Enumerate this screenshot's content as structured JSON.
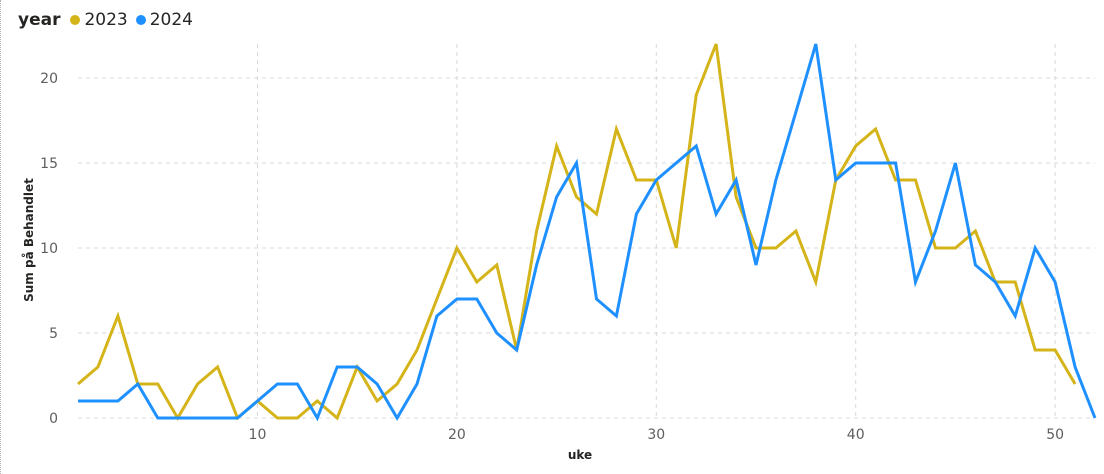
{
  "legend": {
    "title": "year",
    "items": [
      {
        "label": "2023",
        "color": "#d4b419"
      },
      {
        "label": "2024",
        "color": "#1e90ff"
      }
    ]
  },
  "chart_data": {
    "type": "line",
    "xlabel": "uke",
    "ylabel": "Sum på Behandlet",
    "xlim": [
      1,
      52
    ],
    "ylim": [
      0,
      22
    ],
    "x_ticks": [
      10,
      20,
      30,
      40,
      50
    ],
    "y_ticks": [
      0,
      5,
      10,
      15,
      20
    ],
    "grid": true,
    "legend_position": "top-left",
    "series": [
      {
        "name": "2023",
        "color": "#d4b419",
        "x": [
          1,
          2,
          3,
          4,
          5,
          6,
          7,
          8,
          9,
          10,
          11,
          12,
          13,
          14,
          15,
          16,
          17,
          18,
          19,
          20,
          21,
          22,
          23,
          24,
          25,
          26,
          27,
          28,
          29,
          30,
          31,
          32,
          33,
          34,
          35,
          36,
          37,
          38,
          39,
          40,
          41,
          42,
          43,
          44,
          45,
          46,
          47,
          48,
          49,
          50,
          51
        ],
        "values": [
          2,
          3,
          6,
          2,
          2,
          0,
          2,
          3,
          0,
          1,
          0,
          0,
          1,
          0,
          3,
          1,
          2,
          4,
          7,
          10,
          8,
          9,
          4,
          11,
          16,
          13,
          12,
          17,
          14,
          14,
          10,
          19,
          22,
          13,
          10,
          10,
          11,
          8,
          14,
          16,
          17,
          14,
          14,
          10,
          10,
          11,
          8,
          8,
          4,
          4,
          2
        ]
      },
      {
        "name": "2024",
        "color": "#1e90ff",
        "x": [
          1,
          2,
          3,
          4,
          5,
          6,
          7,
          8,
          9,
          10,
          11,
          12,
          13,
          14,
          15,
          16,
          17,
          18,
          19,
          20,
          21,
          22,
          23,
          24,
          25,
          26,
          27,
          28,
          29,
          30,
          31,
          32,
          33,
          34,
          35,
          36,
          37,
          38,
          39,
          40,
          41,
          42,
          43,
          44,
          45,
          46,
          47,
          48,
          49,
          50,
          51,
          52
        ],
        "values": [
          1,
          1,
          1,
          2,
          0,
          0,
          0,
          0,
          0,
          1,
          2,
          2,
          0,
          3,
          3,
          2,
          0,
          2,
          6,
          7,
          7,
          5,
          4,
          9,
          13,
          15,
          7,
          6,
          12,
          14,
          15,
          16,
          12,
          14,
          9,
          14,
          18,
          22,
          14,
          15,
          15,
          15,
          8,
          11,
          15,
          9,
          8,
          6,
          10,
          8,
          3,
          0
        ]
      }
    ]
  }
}
